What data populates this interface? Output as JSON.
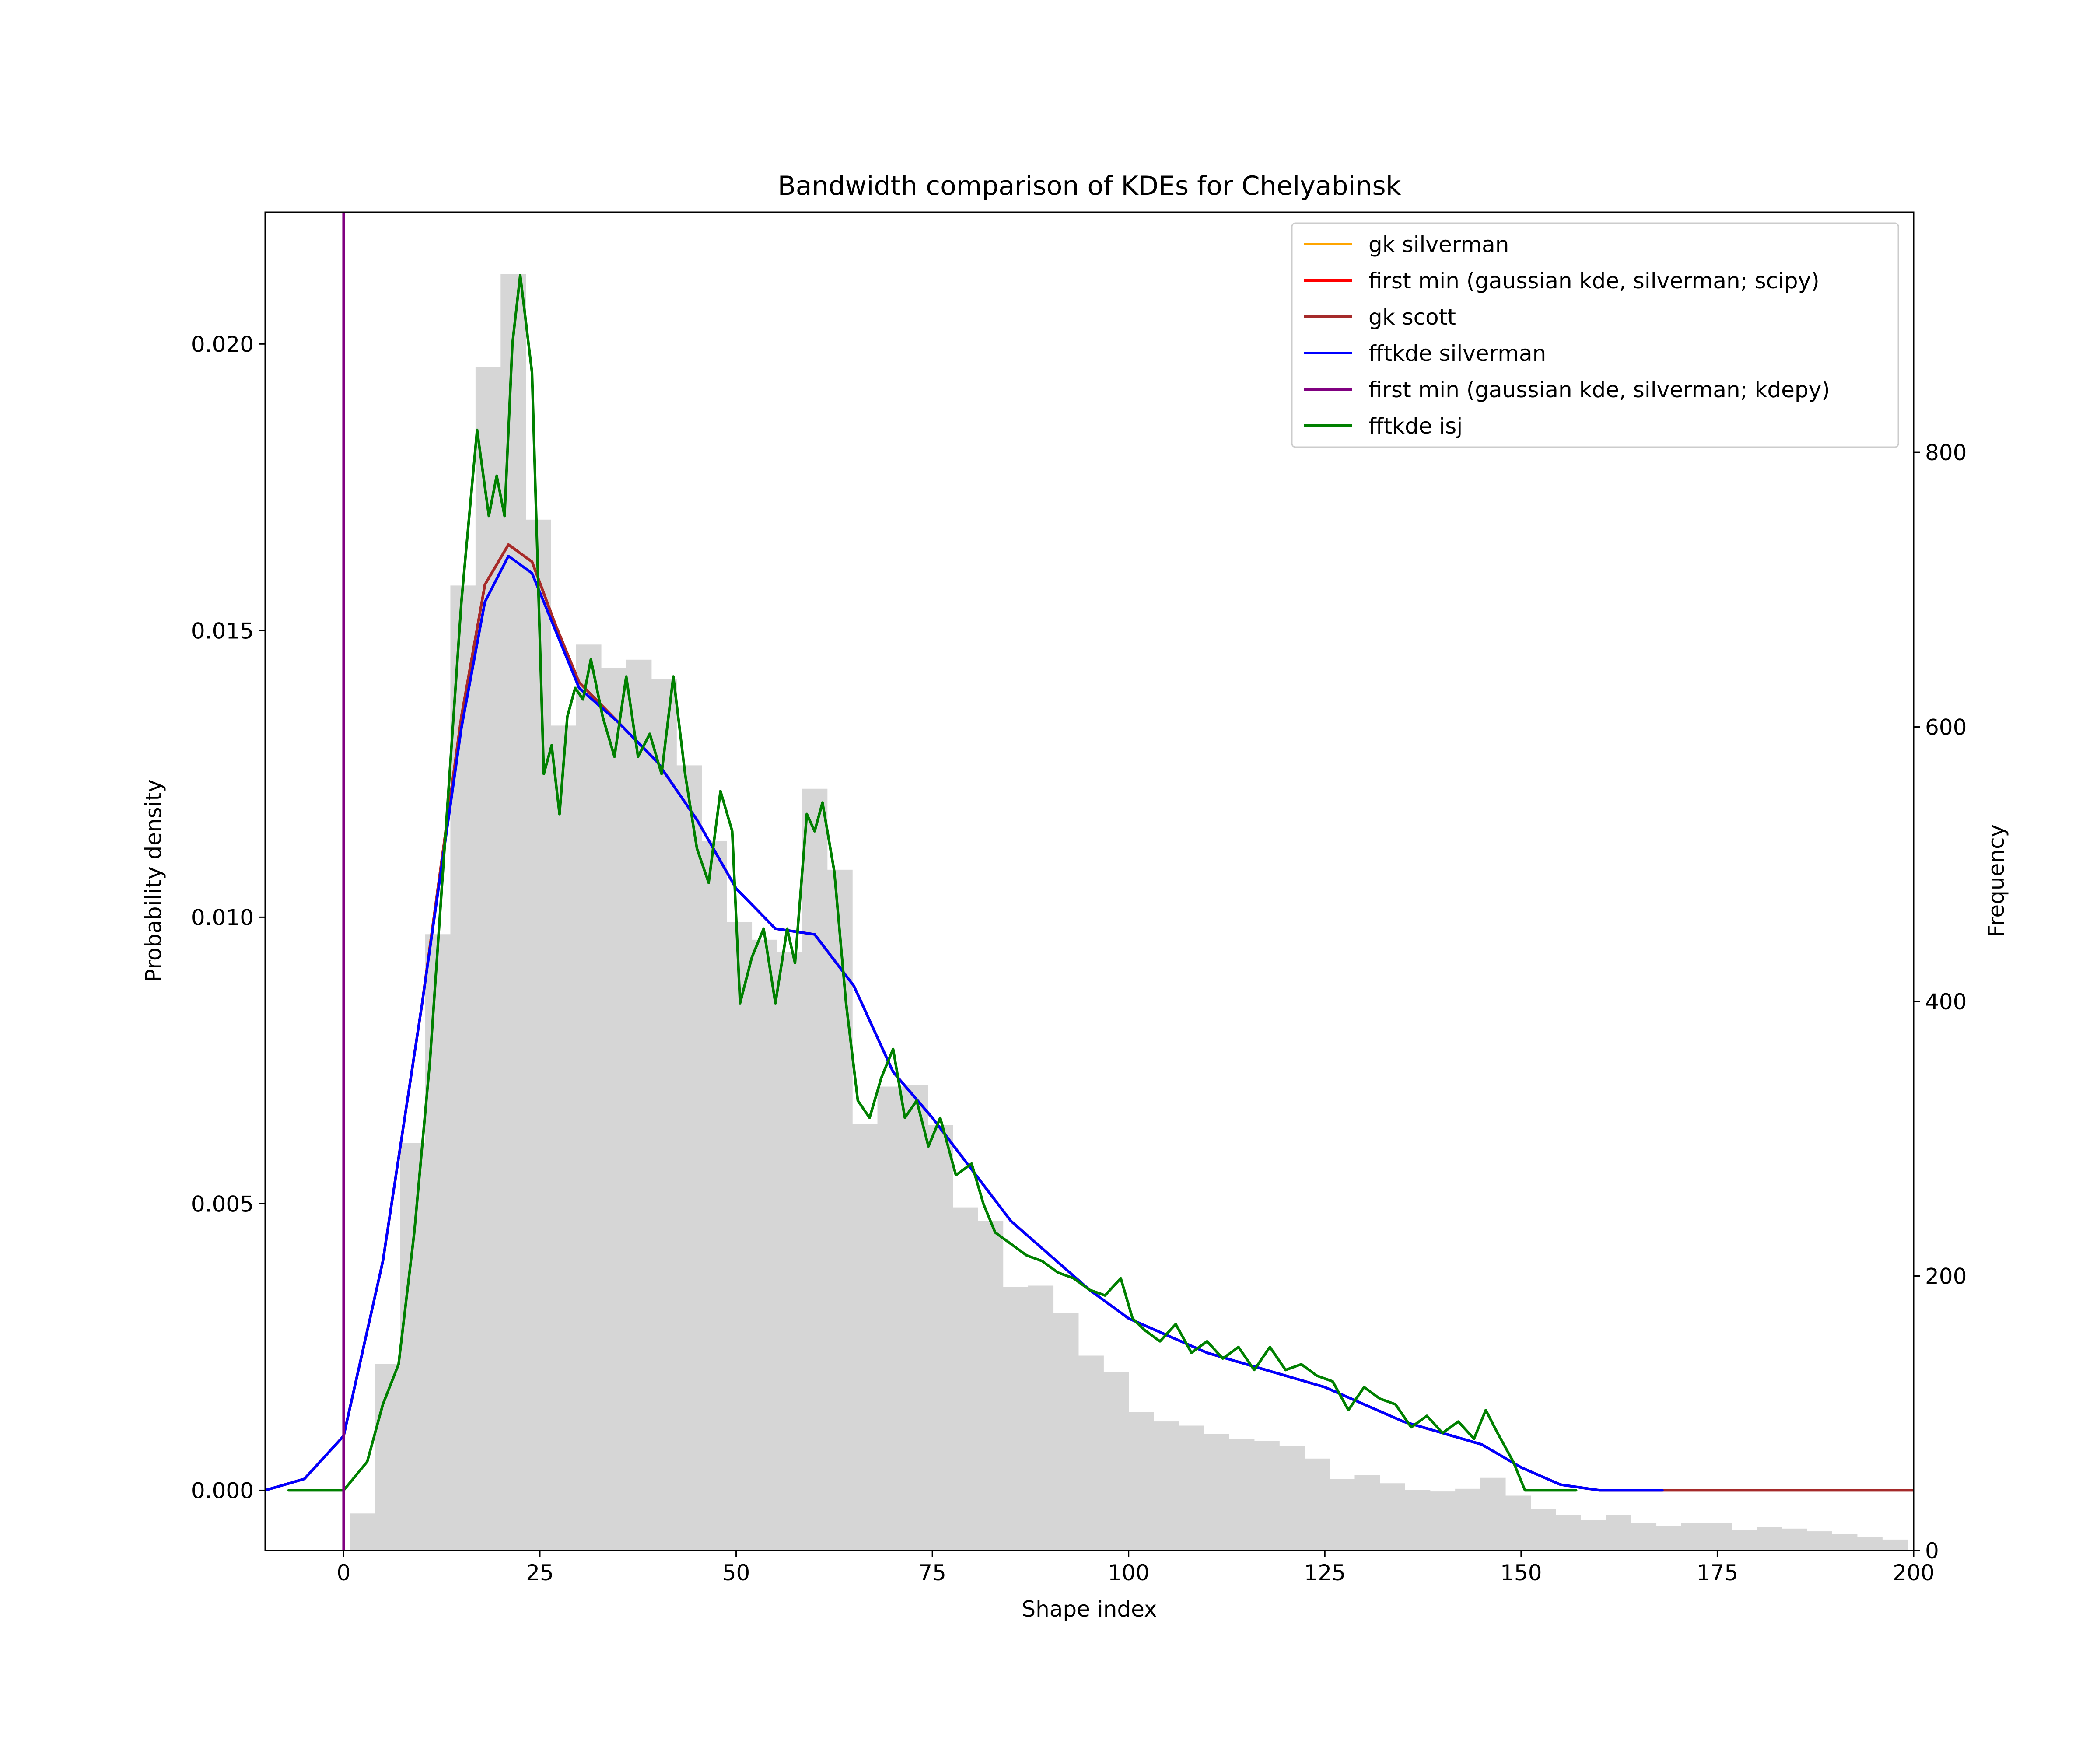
{
  "chart_data": {
    "type": "histogram+line",
    "title": "Bandwidth comparison of KDEs for Chelyabinsk",
    "xlabel": "Shape index",
    "ylabel": "Probability density",
    "y2label": "Frequency",
    "xlim": [
      -10,
      200
    ],
    "ylim": [
      -0.00105,
      0.0223
    ],
    "y2lim": [
      0,
      975
    ],
    "xticks": [
      0,
      25,
      50,
      75,
      100,
      125,
      150,
      175,
      200
    ],
    "yticks": [
      0.0,
      0.005,
      0.01,
      0.015,
      0.02
    ],
    "ytick_labels": [
      "0.000",
      "0.005",
      "0.010",
      "0.015",
      "0.020"
    ],
    "y2ticks": [
      0,
      200,
      400,
      600,
      800
    ],
    "grid": false,
    "legend_position": "top-right",
    "histogram": {
      "color": "#d6d6d6",
      "bin_width": 3.2,
      "bins_start": [
        0.8,
        4.0,
        7.2,
        10.4,
        13.6,
        16.8,
        20.0,
        23.2,
        26.4,
        29.6,
        32.8,
        36.0,
        39.2,
        42.4,
        45.6,
        48.8,
        52.0,
        55.2,
        58.4,
        61.6,
        64.8,
        68.0,
        71.2,
        74.4,
        77.6,
        80.8,
        84.0,
        87.2,
        90.4,
        93.6,
        96.8,
        100.0,
        103.2,
        106.4,
        109.6,
        112.8,
        116.0,
        119.2,
        122.4,
        125.6,
        128.8,
        132.0,
        135.2,
        138.4,
        141.6,
        144.8,
        148.0,
        151.2,
        154.4,
        157.6,
        160.8,
        164.0,
        167.2,
        170.4,
        173.6,
        176.8,
        180.0,
        183.2,
        186.4,
        189.6,
        192.8,
        196.0
      ],
      "counts": [
        27,
        136,
        297,
        449,
        703,
        862,
        930,
        751,
        601,
        660,
        643,
        649,
        635,
        572,
        517,
        458,
        445,
        436,
        555,
        496,
        311,
        338,
        339,
        310,
        250,
        240,
        192,
        193,
        173,
        142,
        130,
        101,
        94,
        91,
        85,
        81,
        80,
        76,
        67,
        52,
        55,
        49,
        44,
        43,
        45,
        53,
        40,
        30,
        26,
        22,
        26,
        20,
        18,
        20,
        20,
        15,
        17,
        16,
        14,
        12,
        10,
        8
      ]
    },
    "vertical_line": {
      "x": 0,
      "color": "#800080"
    },
    "series": [
      {
        "name": "gk silverman",
        "color": "#ffa500",
        "x": [
          -10,
          -5,
          0,
          5,
          10,
          15,
          18,
          21,
          24,
          27,
          30,
          35,
          40,
          45,
          50,
          55,
          60,
          65,
          70,
          75,
          80,
          85,
          90,
          95,
          100,
          105,
          110,
          115,
          120,
          125,
          130,
          135,
          140,
          145,
          150,
          155,
          160,
          168
        ],
        "y": [
          0.0,
          0.0002,
          0.00095,
          0.004,
          0.0085,
          0.0135,
          0.0158,
          0.0165,
          0.0162,
          0.0151,
          0.0141,
          0.0134,
          0.0127,
          0.0117,
          0.0105,
          0.0098,
          0.0097,
          0.0088,
          0.0073,
          0.0065,
          0.0056,
          0.0047,
          0.0041,
          0.0035,
          0.003,
          0.0027,
          0.0024,
          0.0022,
          0.002,
          0.0018,
          0.0015,
          0.0012,
          0.001,
          0.0008,
          0.0004,
          0.0001,
          0.0,
          0.0
        ]
      },
      {
        "name": "first min (gaussian kde, silverman; scipy)",
        "color": "#ff0000",
        "x": [
          -10,
          -5,
          0,
          5,
          10,
          15,
          18,
          21,
          24,
          27,
          30,
          35,
          40,
          45,
          50,
          55,
          60,
          65,
          70,
          75,
          80,
          85,
          90,
          95,
          100,
          105,
          110,
          115,
          120,
          125,
          130,
          135,
          140,
          145,
          150,
          155,
          160,
          168
        ],
        "y": [
          0.0,
          0.0002,
          0.00095,
          0.004,
          0.0085,
          0.0135,
          0.0158,
          0.0165,
          0.0162,
          0.0151,
          0.0141,
          0.0134,
          0.0127,
          0.0117,
          0.0105,
          0.0098,
          0.0097,
          0.0088,
          0.0073,
          0.0065,
          0.0056,
          0.0047,
          0.0041,
          0.0035,
          0.003,
          0.0027,
          0.0024,
          0.0022,
          0.002,
          0.0018,
          0.0015,
          0.0012,
          0.001,
          0.0008,
          0.0004,
          0.0001,
          0.0,
          0.0
        ]
      },
      {
        "name": "gk scott",
        "color": "#a52a2a",
        "x": [
          -10,
          -5,
          0,
          5,
          10,
          15,
          18,
          21,
          24,
          27,
          30,
          35,
          40,
          45,
          50,
          55,
          60,
          65,
          70,
          75,
          80,
          85,
          90,
          95,
          100,
          105,
          110,
          115,
          120,
          125,
          130,
          135,
          140,
          145,
          150,
          155,
          160,
          168,
          200
        ],
        "y": [
          0.0,
          0.0002,
          0.00095,
          0.004,
          0.0085,
          0.0135,
          0.0158,
          0.0165,
          0.0162,
          0.0151,
          0.0141,
          0.0134,
          0.0127,
          0.0117,
          0.0105,
          0.0098,
          0.0097,
          0.0088,
          0.0073,
          0.0065,
          0.0056,
          0.0047,
          0.0041,
          0.0035,
          0.003,
          0.0027,
          0.0024,
          0.0022,
          0.002,
          0.0018,
          0.0015,
          0.0012,
          0.001,
          0.0008,
          0.0004,
          0.0001,
          0.0,
          0.0,
          0.0
        ]
      },
      {
        "name": "fftkde silverman",
        "color": "#0000ff",
        "x": [
          -10,
          -5,
          0,
          5,
          10,
          15,
          18,
          21,
          24,
          27,
          30,
          35,
          40,
          45,
          50,
          55,
          60,
          65,
          70,
          75,
          80,
          85,
          90,
          95,
          100,
          105,
          110,
          115,
          120,
          125,
          130,
          135,
          140,
          145,
          150,
          155,
          160,
          168
        ],
        "y": [
          0.0,
          0.0002,
          0.00095,
          0.004,
          0.0085,
          0.0133,
          0.0155,
          0.0163,
          0.016,
          0.015,
          0.014,
          0.0134,
          0.0127,
          0.0117,
          0.0105,
          0.0098,
          0.0097,
          0.0088,
          0.0073,
          0.0065,
          0.0056,
          0.0047,
          0.0041,
          0.0035,
          0.003,
          0.0027,
          0.0024,
          0.0022,
          0.002,
          0.0018,
          0.0015,
          0.0012,
          0.001,
          0.0008,
          0.0004,
          0.0001,
          0.0,
          0.0
        ]
      },
      {
        "name": "first min (gaussian kde, silverman; kdepy)",
        "color": "#800080",
        "x": [],
        "y": []
      },
      {
        "name": "fftkde isj",
        "color": "#008000",
        "x": [
          -7,
          0,
          3,
          5,
          7,
          9,
          11,
          13,
          15,
          17,
          18.5,
          19.5,
          20.5,
          21.5,
          22.5,
          24,
          25.5,
          26.5,
          27.5,
          28.5,
          29.5,
          30.5,
          31.5,
          33,
          34.5,
          36,
          37.5,
          39,
          40.5,
          42,
          43.5,
          45,
          46.5,
          48,
          49.5,
          50.5,
          52,
          53.5,
          55,
          56.5,
          57.5,
          59,
          60,
          61,
          62.5,
          64,
          65.5,
          67,
          68.5,
          70,
          71.5,
          73,
          74.5,
          76,
          78,
          80,
          81.5,
          83,
          85,
          87,
          89,
          91,
          93,
          95,
          97,
          99,
          100.5,
          102,
          104,
          106,
          108,
          110,
          112,
          114,
          116,
          118,
          120,
          122,
          124,
          126,
          128,
          130,
          132,
          134,
          136,
          138,
          140,
          142,
          144,
          145.5,
          147,
          149,
          150.5,
          152,
          157
        ],
        "y": [
          0.0,
          0.0,
          0.0005,
          0.0015,
          0.0022,
          0.0045,
          0.0075,
          0.0115,
          0.0155,
          0.0185,
          0.017,
          0.0177,
          0.017,
          0.02,
          0.0212,
          0.0195,
          0.0125,
          0.013,
          0.0118,
          0.0135,
          0.014,
          0.0138,
          0.0145,
          0.0135,
          0.0128,
          0.0142,
          0.0128,
          0.0132,
          0.0125,
          0.0142,
          0.0125,
          0.0112,
          0.0106,
          0.0122,
          0.0115,
          0.0085,
          0.0093,
          0.0098,
          0.0085,
          0.0098,
          0.0092,
          0.0118,
          0.0115,
          0.012,
          0.0108,
          0.0085,
          0.0068,
          0.0065,
          0.0072,
          0.0077,
          0.0065,
          0.0068,
          0.006,
          0.0065,
          0.0055,
          0.0057,
          0.005,
          0.0045,
          0.0043,
          0.0041,
          0.004,
          0.0038,
          0.0037,
          0.0035,
          0.0034,
          0.0037,
          0.003,
          0.0028,
          0.0026,
          0.0029,
          0.0024,
          0.0026,
          0.0023,
          0.0025,
          0.0021,
          0.0025,
          0.0021,
          0.0022,
          0.002,
          0.0019,
          0.0014,
          0.0018,
          0.0016,
          0.0015,
          0.0011,
          0.0013,
          0.001,
          0.0012,
          0.0009,
          0.0014,
          0.001,
          0.0005,
          0.0,
          0.0,
          0.0
        ]
      }
    ]
  }
}
